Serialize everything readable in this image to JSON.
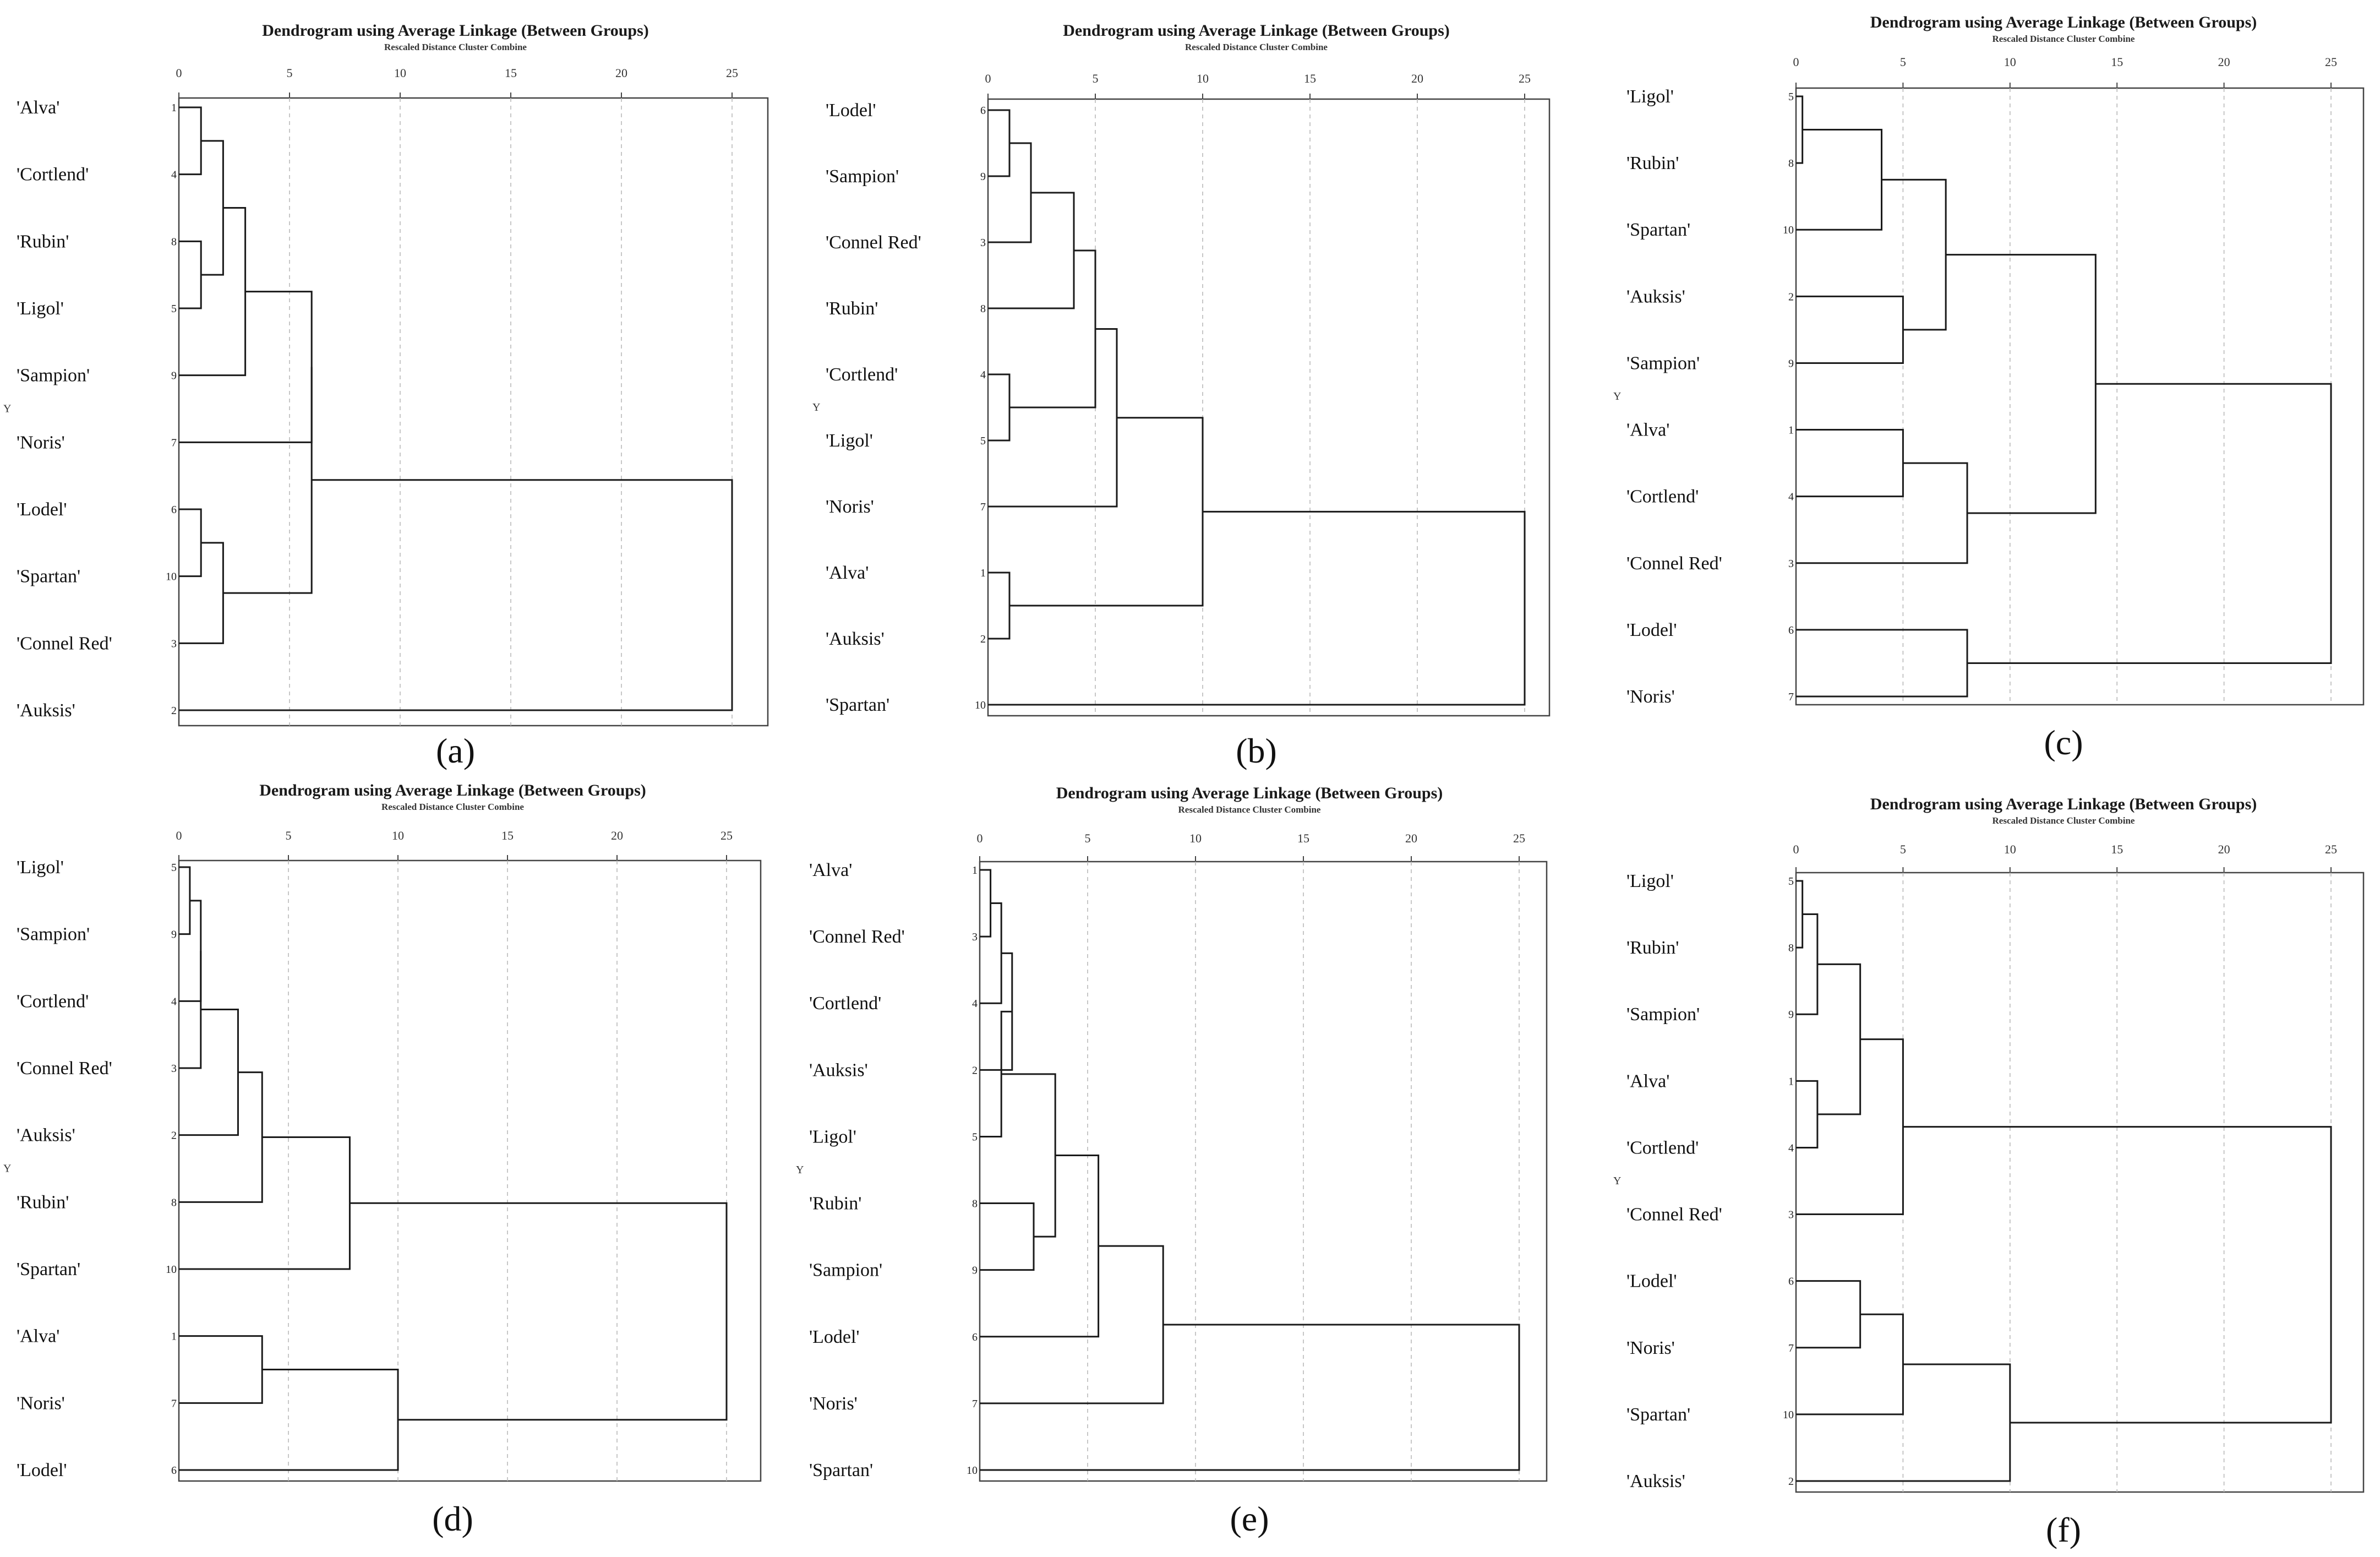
{
  "figure": {
    "title": "Dendrogram using Average Linkage (Between Groups)",
    "subtitle": "Rescaled Distance Cluster Combine",
    "y_label": "Y"
  },
  "chart_data": [
    {
      "type": "dendrogram",
      "caption": "(a)",
      "title": "Dendrogram using Average Linkage (Between Groups)",
      "xlabel": "Rescaled Distance Cluster Combine",
      "xlim": [
        0,
        25
      ],
      "xticks": [
        0,
        5,
        10,
        15,
        20,
        25
      ],
      "leaves": [
        {
          "label": "'Alva'",
          "case": 1
        },
        {
          "label": "'Cortlend'",
          "case": 4
        },
        {
          "label": "'Rubin'",
          "case": 8
        },
        {
          "label": "'Ligol'",
          "case": 5
        },
        {
          "label": "'Sampion'",
          "case": 9
        },
        {
          "label": "'Noris'",
          "case": 7
        },
        {
          "label": "'Lodel'",
          "case": 6
        },
        {
          "label": "'Spartan'",
          "case": 10
        },
        {
          "label": "'Connel Red'",
          "case": 3
        },
        {
          "label": "'Auksis'",
          "case": 2
        }
      ],
      "merges": [
        [
          0,
          1,
          1.0
        ],
        [
          2,
          3,
          1.0
        ],
        [
          10,
          11,
          2.0
        ],
        [
          12,
          4,
          3.0
        ],
        [
          13,
          5,
          6.0
        ],
        [
          6,
          7,
          1.0
        ],
        [
          15,
          8,
          2.0
        ],
        [
          14,
          16,
          6.0
        ],
        [
          17,
          9,
          25.0
        ]
      ]
    },
    {
      "type": "dendrogram",
      "caption": "(b)",
      "title": "Dendrogram using Average Linkage (Between Groups)",
      "xlabel": "Rescaled Distance Cluster Combine",
      "xlim": [
        0,
        25
      ],
      "xticks": [
        0,
        5,
        10,
        15,
        20,
        25
      ],
      "leaves": [
        {
          "label": "'Lodel'",
          "case": 6
        },
        {
          "label": "'Sampion'",
          "case": 9
        },
        {
          "label": "'Connel Red'",
          "case": 3
        },
        {
          "label": "'Rubin'",
          "case": 8
        },
        {
          "label": "'Cortlend'",
          "case": 4
        },
        {
          "label": "'Ligol'",
          "case": 5
        },
        {
          "label": "'Noris'",
          "case": 7
        },
        {
          "label": "'Alva'",
          "case": 1
        },
        {
          "label": "'Auksis'",
          "case": 2
        },
        {
          "label": "'Spartan'",
          "case": 10
        }
      ],
      "merges": [
        [
          0,
          1,
          1.0
        ],
        [
          10,
          2,
          2.0
        ],
        [
          11,
          3,
          4.0
        ],
        [
          4,
          5,
          1.0
        ],
        [
          12,
          13,
          5.0
        ],
        [
          14,
          6,
          6.0
        ],
        [
          7,
          8,
          1.0
        ],
        [
          15,
          16,
          10.0
        ],
        [
          17,
          9,
          25.0
        ]
      ]
    },
    {
      "type": "dendrogram",
      "caption": "(c)",
      "title": "Dendrogram using Average Linkage (Between Groups)",
      "xlabel": "Rescaled Distance Cluster Combine",
      "xlim": [
        0,
        25
      ],
      "xticks": [
        0,
        5,
        10,
        15,
        20,
        25
      ],
      "leaves": [
        {
          "label": "'Ligol'",
          "case": 5
        },
        {
          "label": "'Rubin'",
          "case": 8
        },
        {
          "label": "'Spartan'",
          "case": 10
        },
        {
          "label": "'Auksis'",
          "case": 2
        },
        {
          "label": "'Sampion'",
          "case": 9
        },
        {
          "label": "'Alva'",
          "case": 1
        },
        {
          "label": "'Cortlend'",
          "case": 4
        },
        {
          "label": "'Connel Red'",
          "case": 3
        },
        {
          "label": "'Lodel'",
          "case": 6
        },
        {
          "label": "'Noris'",
          "case": 7
        }
      ],
      "merges": [
        [
          0,
          1,
          0.3
        ],
        [
          10,
          2,
          4.0
        ],
        [
          3,
          4,
          5.0
        ],
        [
          11,
          12,
          7.0
        ],
        [
          5,
          6,
          5.0
        ],
        [
          14,
          7,
          8.0
        ],
        [
          13,
          15,
          14.0
        ],
        [
          8,
          9,
          8.0
        ],
        [
          16,
          17,
          25.0
        ]
      ]
    },
    {
      "type": "dendrogram",
      "caption": "(d)",
      "title": "Dendrogram using Average Linkage (Between Groups)",
      "xlabel": "Rescaled Distance Cluster Combine",
      "xlim": [
        0,
        25
      ],
      "xticks": [
        0,
        5,
        10,
        15,
        20,
        25
      ],
      "leaves": [
        {
          "label": "'Ligol'",
          "case": 5
        },
        {
          "label": "'Sampion'",
          "case": 9
        },
        {
          "label": "'Cortlend'",
          "case": 4
        },
        {
          "label": "'Connel Red'",
          "case": 3
        },
        {
          "label": "'Auksis'",
          "case": 2
        },
        {
          "label": "'Rubin'",
          "case": 8
        },
        {
          "label": "'Spartan'",
          "case": 10
        },
        {
          "label": "'Alva'",
          "case": 1
        },
        {
          "label": "'Noris'",
          "case": 7
        },
        {
          "label": "'Lodel'",
          "case": 6
        }
      ],
      "merges": [
        [
          0,
          1,
          0.5
        ],
        [
          10,
          2,
          1.0
        ],
        [
          11,
          3,
          1.0
        ],
        [
          12,
          4,
          2.7
        ],
        [
          13,
          5,
          3.8
        ],
        [
          14,
          6,
          7.8
        ],
        [
          7,
          8,
          3.8
        ],
        [
          16,
          9,
          10.0
        ],
        [
          15,
          17,
          25.0
        ]
      ]
    },
    {
      "type": "dendrogram",
      "caption": "(e)",
      "title": "Dendrogram using Average Linkage (Between Groups)",
      "xlabel": "Rescaled Distance Cluster Combine",
      "xlim": [
        0,
        25
      ],
      "xticks": [
        0,
        5,
        10,
        15,
        20,
        25
      ],
      "leaves": [
        {
          "label": "'Alva'",
          "case": 1
        },
        {
          "label": "'Connel Red'",
          "case": 3
        },
        {
          "label": "'Cortlend'",
          "case": 4
        },
        {
          "label": "'Auksis'",
          "case": 2
        },
        {
          "label": "'Ligol'",
          "case": 5
        },
        {
          "label": "'Rubin'",
          "case": 8
        },
        {
          "label": "'Sampion'",
          "case": 9
        },
        {
          "label": "'Lodel'",
          "case": 6
        },
        {
          "label": "'Noris'",
          "case": 7
        },
        {
          "label": "'Spartan'",
          "case": 10
        }
      ],
      "merges": [
        [
          0,
          1,
          0.5
        ],
        [
          10,
          2,
          1.0
        ],
        [
          11,
          3,
          1.5
        ],
        [
          12,
          4,
          1.0
        ],
        [
          5,
          6,
          2.5
        ],
        [
          13,
          14,
          3.5
        ],
        [
          15,
          7,
          5.5
        ],
        [
          16,
          8,
          8.5
        ],
        [
          17,
          9,
          25.0
        ]
      ]
    },
    {
      "type": "dendrogram",
      "caption": "(f)",
      "title": "Dendrogram using Average Linkage (Between Groups)",
      "xlabel": "Rescaled Distance Cluster Combine",
      "xlim": [
        0,
        25
      ],
      "xticks": [
        0,
        5,
        10,
        15,
        20,
        25
      ],
      "leaves": [
        {
          "label": "'Ligol'",
          "case": 5
        },
        {
          "label": "'Rubin'",
          "case": 8
        },
        {
          "label": "'Sampion'",
          "case": 9
        },
        {
          "label": "'Alva'",
          "case": 1
        },
        {
          "label": "'Cortlend'",
          "case": 4
        },
        {
          "label": "'Connel Red'",
          "case": 3
        },
        {
          "label": "'Lodel'",
          "case": 6
        },
        {
          "label": "'Noris'",
          "case": 7
        },
        {
          "label": "'Spartan'",
          "case": 10
        },
        {
          "label": "'Auksis'",
          "case": 2
        }
      ],
      "merges": [
        [
          0,
          1,
          0.3
        ],
        [
          10,
          2,
          1.0
        ],
        [
          3,
          4,
          1.0
        ],
        [
          11,
          12,
          3.0
        ],
        [
          13,
          5,
          5.0
        ],
        [
          6,
          7,
          3.0
        ],
        [
          15,
          8,
          5.0
        ],
        [
          16,
          9,
          10.0
        ],
        [
          14,
          17,
          25.0
        ]
      ]
    }
  ]
}
